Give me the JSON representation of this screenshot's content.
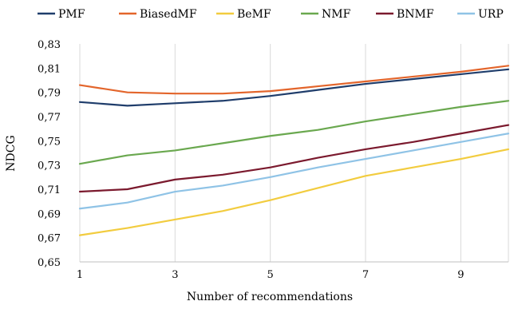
{
  "chart_data": {
    "type": "line",
    "title": "",
    "xlabel": "Number of recommendations",
    "ylabel": "NDCG",
    "x": [
      1,
      2,
      3,
      4,
      5,
      6,
      7,
      8,
      9,
      10
    ],
    "xlim": [
      1,
      10
    ],
    "ylim": [
      0.65,
      0.83
    ],
    "x_ticks": [
      1,
      3,
      5,
      7,
      9
    ],
    "x_tick_labels": [
      "1",
      "3",
      "5",
      "7",
      "9"
    ],
    "y_ticks": [
      0.65,
      0.67,
      0.69,
      0.71,
      0.73,
      0.75,
      0.77,
      0.79,
      0.81,
      0.83
    ],
    "y_tick_labels": [
      "0,65",
      "0,67",
      "0,69",
      "0,71",
      "0,73",
      "0,75",
      "0,77",
      "0,79",
      "0,81",
      "0,83"
    ],
    "grid": "vertical",
    "legend_position": "top",
    "series": [
      {
        "name": "PMF",
        "color": "#1f3d6b",
        "values": [
          0.782,
          0.779,
          0.781,
          0.783,
          0.787,
          0.792,
          0.797,
          0.801,
          0.805,
          0.809
        ]
      },
      {
        "name": "BiasedMF",
        "color": "#e3652b",
        "values": [
          0.796,
          0.79,
          0.789,
          0.789,
          0.791,
          0.795,
          0.799,
          0.803,
          0.807,
          0.812
        ]
      },
      {
        "name": "BeMF",
        "color": "#f2cc3f",
        "values": [
          0.672,
          0.678,
          0.685,
          0.692,
          0.701,
          0.711,
          0.721,
          0.728,
          0.735,
          0.743
        ]
      },
      {
        "name": "NMF",
        "color": "#6aa84f",
        "values": [
          0.731,
          0.738,
          0.742,
          0.748,
          0.754,
          0.759,
          0.766,
          0.772,
          0.778,
          0.783
        ]
      },
      {
        "name": "BNMF",
        "color": "#7b1a2e",
        "values": [
          0.708,
          0.71,
          0.718,
          0.722,
          0.728,
          0.736,
          0.743,
          0.749,
          0.756,
          0.763
        ]
      },
      {
        "name": "URP",
        "color": "#8fc3e6",
        "values": [
          0.694,
          0.699,
          0.708,
          0.713,
          0.72,
          0.728,
          0.735,
          0.742,
          0.749,
          0.756
        ]
      }
    ]
  }
}
